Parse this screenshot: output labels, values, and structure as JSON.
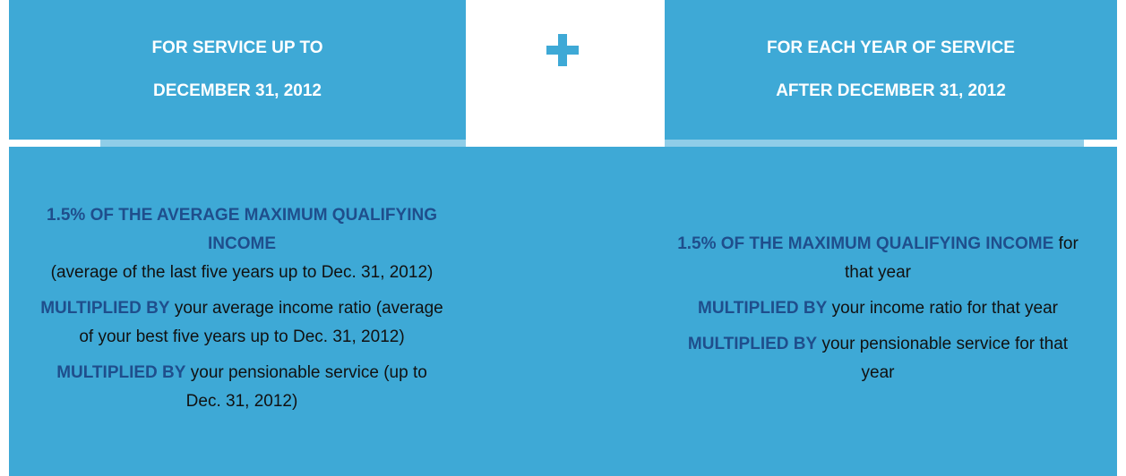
{
  "headers": [
    {
      "lines": [
        "FOR SERVICE UP TO",
        "DECEMBER 31, 2012"
      ]
    },
    {
      "lines": [
        "FOR EACH YEAR OF SERVICE",
        "AFTER DECEMBER 31, 2012"
      ]
    }
  ],
  "columns": [
    {
      "paragraphs": [
        {
          "emphasis": "1.5% OF THE AVERAGE MAXIMUM QUALIFYING INCOME",
          "text": "(average of the last five years up to Dec. 31, 2012)"
        },
        {
          "emphasis": "MULTIPLIED BY",
          "text": "your average income ratio (average of your best five years up to Dec. 31, 2012)"
        },
        {
          "emphasis": "MULTIPLIED BY",
          "text": "your pensionable service (up to Dec. 31, 2012)"
        }
      ]
    },
    {
      "paragraphs": [
        {
          "emphasis": "1.5% OF THE MAXIMUM QUALIFYING INCOME",
          "text": "for that year"
        },
        {
          "emphasis": "MULTIPLIED BY",
          "text": "your income ratio for that year"
        },
        {
          "emphasis": "MULTIPLIED BY",
          "text": "your pensionable service for that year"
        }
      ]
    }
  ]
}
